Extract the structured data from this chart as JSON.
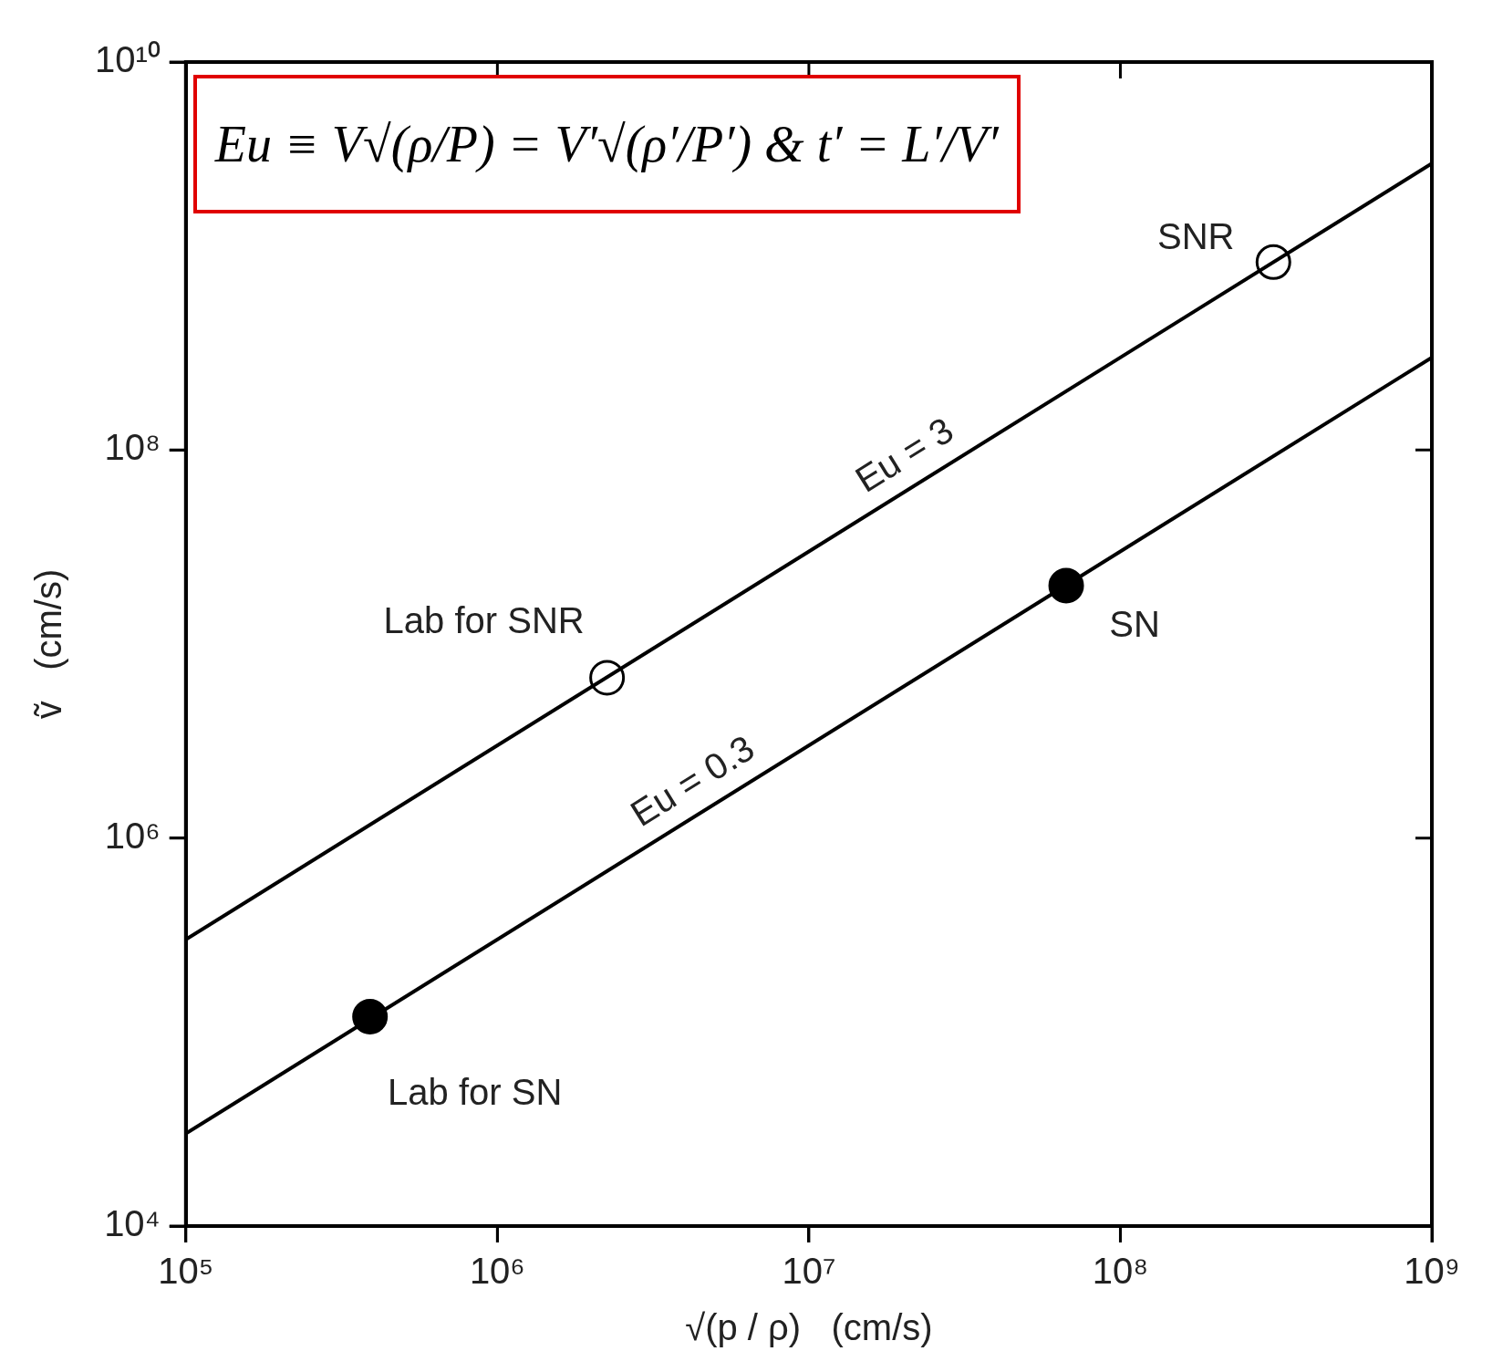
{
  "chart_data": {
    "type": "line",
    "xlabel": "√(p / ρ)   (cm/s)",
    "ylabel": "ṽ   (cm/s)",
    "log": "xy",
    "grid": false,
    "legend": false,
    "xlim": [
      100000,
      1000000000
    ],
    "ylim": [
      10000,
      10000000000
    ],
    "xticks": [
      {
        "value": 100000,
        "label": "10⁵"
      },
      {
        "value": 1000000,
        "label": "10⁶"
      },
      {
        "value": 10000000,
        "label": "10⁷"
      },
      {
        "value": 100000000,
        "label": "10⁸"
      },
      {
        "value": 1000000000,
        "label": "10⁹"
      }
    ],
    "yticks": [
      {
        "value": 10000,
        "label": "10⁴"
      },
      {
        "value": 1000000,
        "label": "10⁶"
      },
      {
        "value": 100000000,
        "label": "10⁸"
      },
      {
        "value": 10000000000,
        "label": "10¹⁰"
      }
    ],
    "series": [
      {
        "name": "Eu = 3",
        "type": "line",
        "color": "#000000",
        "marker": "none",
        "x": [
          100000,
          1000000000
        ],
        "values": [
          300000,
          3000000000
        ]
      },
      {
        "name": "Eu = 0.3",
        "type": "line",
        "color": "#000000",
        "marker": "none",
        "x": [
          100000,
          1000000000
        ],
        "values": [
          30000,
          300000000
        ]
      },
      {
        "type": "scatter",
        "color": "#ffffff",
        "marker": "circle",
        "x": [
          2250000,
          310000000
        ],
        "values": [
          6700000,
          930000000
        ]
      },
      {
        "type": "scatter",
        "color": "#000000",
        "marker": "circle",
        "x": [
          390000,
          67000000
        ],
        "values": [
          120000,
          20000000
        ]
      }
    ],
    "annotations": [
      "Eu ≡ V√(ρ/P) = V′√(ρ′/P′)   &   t′ = L′/V′",
      {
        "text": "SNR",
        "x": 310000000,
        "y": 930000000
      },
      {
        "text": "Lab for SNR",
        "x": 2250000,
        "y": 6700000
      },
      {
        "text": "SN",
        "x": 67000000,
        "y": 20000000
      },
      {
        "text": "Lab for SN",
        "x": 390000,
        "y": 120000
      }
    ]
  }
}
